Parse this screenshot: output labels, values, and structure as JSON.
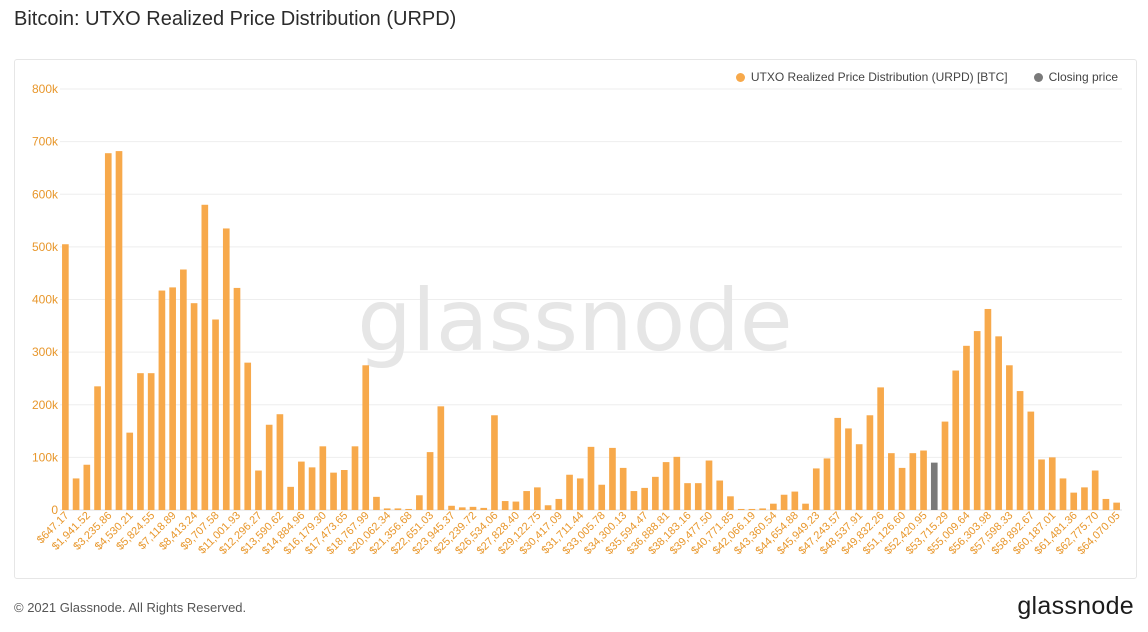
{
  "header": {
    "title": "Bitcoin: UTXO Realized Price Distribution (URPD)"
  },
  "footer": {
    "copyright": "© 2021 Glassnode. All Rights Reserved.",
    "brand": "glassnode"
  },
  "watermark": "glassnode",
  "colors": {
    "bar": "#f7a94b",
    "closing": "#7a7a7a",
    "axis_text": "#e8972c",
    "grid": "#eeeeee"
  },
  "chart_data": {
    "type": "bar",
    "title": "Bitcoin: UTXO Realized Price Distribution (URPD)",
    "xlabel": "",
    "ylabel": "",
    "ylim": [
      0,
      800000
    ],
    "yticks": [
      {
        "value": 0,
        "label": "0"
      },
      {
        "value": 100000,
        "label": "100k"
      },
      {
        "value": 200000,
        "label": "200k"
      },
      {
        "value": 300000,
        "label": "300k"
      },
      {
        "value": 400000,
        "label": "400k"
      },
      {
        "value": 500000,
        "label": "500k"
      },
      {
        "value": 600000,
        "label": "600k"
      },
      {
        "value": 700000,
        "label": "700k"
      },
      {
        "value": 800000,
        "label": "800k"
      }
    ],
    "grid": true,
    "legend_position": "top-right",
    "series": [
      {
        "name": "UTXO Realized Price Distribution (URPD) [BTC]",
        "color": "#f7a94b"
      },
      {
        "name": "Closing price",
        "color": "#7a7a7a"
      }
    ],
    "closing_index": 81,
    "tick_labels": [
      "$647.17",
      "$1,941.52",
      "$3,235.86",
      "$4,530.21",
      "$5,824.55",
      "$7,118.89",
      "$8,413.24",
      "$9,707.58",
      "$11,001.93",
      "$12,296.27",
      "$13,590.62",
      "$14,884.96",
      "$16,179.30",
      "$17,473.65",
      "$18,767.99",
      "$20,062.34",
      "$21,356.68",
      "$22,651.03",
      "$23,945.37",
      "$25,239.72",
      "$26,534.06",
      "$27,828.40",
      "$29,122.75",
      "$30,417.09",
      "$31,711.44",
      "$33,005.78",
      "$34,300.13",
      "$35,594.47",
      "$36,888.81",
      "$38,183.16",
      "$39,477.50",
      "$40,771.85",
      "$42,066.19",
      "$43,360.54",
      "$44,654.88",
      "$45,949.23",
      "$47,243.57",
      "$48,537.91",
      "$49,832.26",
      "$51,126.60",
      "$52,420.95",
      "$53,715.29",
      "$55,009.64",
      "$56,303.98",
      "$57,598.33",
      "$58,892.67",
      "$60,187.01",
      "$61,481.36",
      "$62,775.70",
      "$64,070.05"
    ],
    "values": [
      505000,
      60000,
      86000,
      235000,
      678000,
      682000,
      147000,
      260000,
      260000,
      417000,
      423000,
      457000,
      393000,
      580000,
      362000,
      535000,
      422000,
      280000,
      75000,
      162000,
      182000,
      44000,
      92000,
      81000,
      121000,
      71000,
      76000,
      121000,
      275000,
      25000,
      3000,
      3000,
      2000,
      28000,
      110000,
      197000,
      8000,
      5000,
      6000,
      4000,
      180000,
      17000,
      16000,
      36000,
      43000,
      9000,
      21000,
      67000,
      60000,
      120000,
      48000,
      118000,
      80000,
      36000,
      42000,
      63000,
      91000,
      101000,
      51000,
      51000,
      94000,
      56000,
      26000,
      2000,
      2000,
      3000,
      12000,
      29000,
      35000,
      12000,
      79000,
      98000,
      175000,
      155000,
      125000,
      180000,
      233000,
      108000,
      80000,
      108000,
      113000,
      90000,
      168000,
      265000,
      312000,
      340000,
      382000,
      330000,
      275000,
      226000,
      187000,
      96000,
      100000,
      60000,
      33000,
      43000,
      75000,
      21000,
      14000
    ]
  }
}
